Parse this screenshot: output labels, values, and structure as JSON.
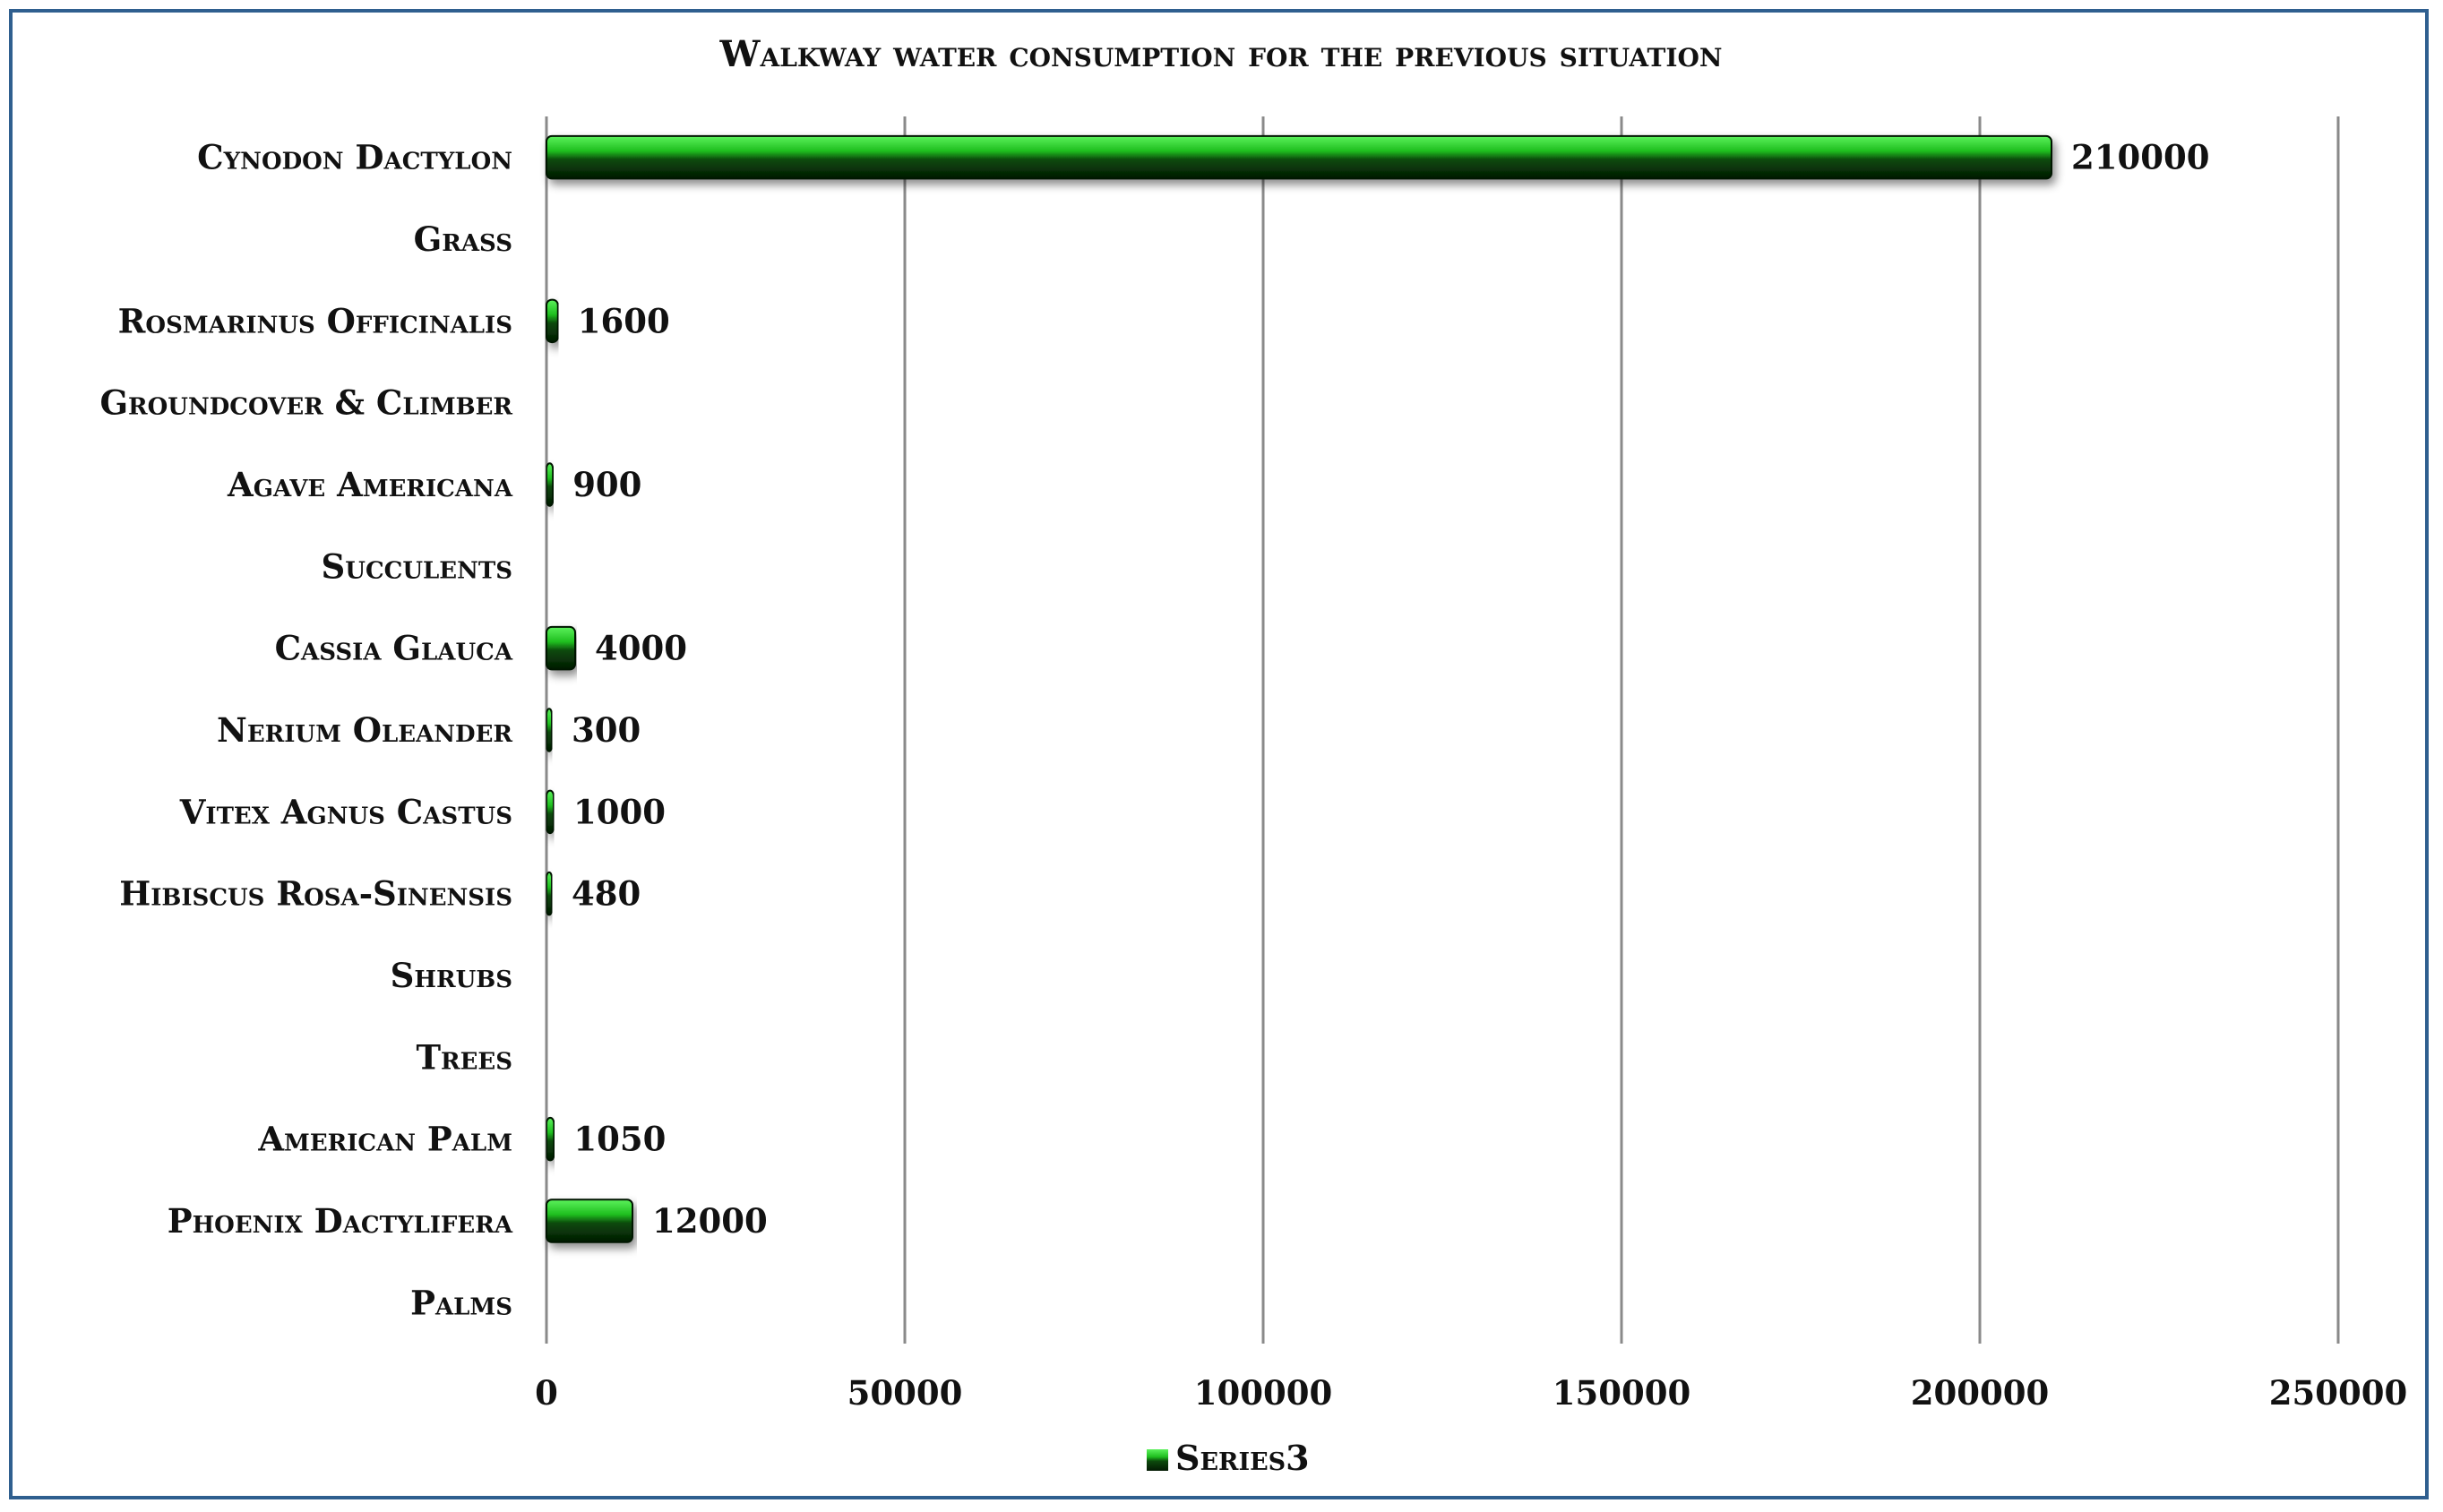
{
  "chart_data": {
    "type": "bar",
    "orientation": "horizontal",
    "title": "Walkway water consumption for the previous situation",
    "categories": [
      "Cynodon Dactylon",
      "Grass",
      "Rosmarinus Officinalis",
      "Groundcover & Climber",
      "Agave Americana",
      "Succulents",
      "Cassia Glauca",
      "Nerium Oleander",
      "Vitex Agnus Castus",
      "Hibiscus Rosa-Sinensis",
      "Shrubs",
      "Trees",
      "American Palm",
      "Phoenix Dactylifera",
      "Palms"
    ],
    "series": [
      {
        "name": "Series3",
        "values": [
          210000,
          null,
          1600,
          null,
          900,
          null,
          4000,
          300,
          1000,
          480,
          null,
          null,
          1050,
          12000,
          null
        ],
        "data_labels": [
          "210000",
          "",
          "1600",
          "",
          "900",
          "",
          "4000",
          "300",
          "1000",
          "480",
          "",
          "",
          "1050",
          "12000",
          ""
        ],
        "color": "#1fbf1f"
      }
    ],
    "xlim": [
      0,
      250000
    ],
    "x_ticks": [
      "0",
      "50000",
      "100000",
      "150000",
      "200000",
      "250000"
    ],
    "x_tick_values": [
      0,
      50000,
      100000,
      150000,
      200000,
      250000
    ],
    "grid": "vertical",
    "legend": "bottom",
    "legend_label": "Series3",
    "colors": {
      "bar_light": "#4ee84e",
      "bar_dark": "#0a3a0a",
      "grid": "#8a8a8a",
      "frame": "#2f5f8f"
    }
  }
}
